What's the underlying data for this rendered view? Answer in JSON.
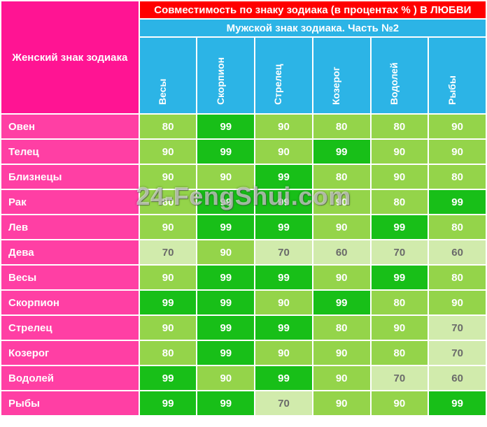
{
  "header": {
    "corner": "Женский знак зодиака",
    "title": "Совместимость по знаку зодиака (в процентах % ) В ЛЮБВИ",
    "subtitle": "Мужской знак зодиака. Часть №2"
  },
  "watermark": "24-FengShui.com",
  "colors": {
    "99": "#18bf18",
    "90": "#94d44a",
    "80": "#94d44a",
    "70": "#d1ebac",
    "60": "#d1ebac",
    "text99": "#ffffff",
    "text90": "#ffffff",
    "text80": "#ffffff",
    "text70": "#6a6a6a",
    "text60": "#6a6a6a"
  },
  "columns": [
    "Весы",
    "Скорпион",
    "Стрелец",
    "Козерог",
    "Водолей",
    "Рыбы"
  ],
  "rows": [
    {
      "label": "Овен",
      "values": [
        80,
        99,
        90,
        80,
        80,
        90
      ]
    },
    {
      "label": "Телец",
      "values": [
        90,
        99,
        90,
        99,
        90,
        90
      ]
    },
    {
      "label": "Близнецы",
      "values": [
        90,
        90,
        99,
        80,
        90,
        80
      ]
    },
    {
      "label": "Рак",
      "values": [
        80,
        99,
        99,
        90,
        80,
        99
      ]
    },
    {
      "label": "Лев",
      "values": [
        90,
        99,
        99,
        90,
        99,
        80
      ]
    },
    {
      "label": "Дева",
      "values": [
        70,
        90,
        70,
        60,
        70,
        60
      ]
    },
    {
      "label": "Весы",
      "values": [
        90,
        99,
        99,
        90,
        99,
        80
      ]
    },
    {
      "label": "Скорпион",
      "values": [
        99,
        99,
        90,
        99,
        80,
        90
      ]
    },
    {
      "label": "Стрелец",
      "values": [
        90,
        99,
        99,
        80,
        90,
        70
      ]
    },
    {
      "label": "Козерог",
      "values": [
        80,
        99,
        90,
        90,
        80,
        70
      ]
    },
    {
      "label": "Водолей",
      "values": [
        99,
        90,
        99,
        90,
        70,
        60
      ]
    },
    {
      "label": "Рыбы",
      "values": [
        99,
        99,
        70,
        90,
        90,
        99
      ]
    }
  ]
}
